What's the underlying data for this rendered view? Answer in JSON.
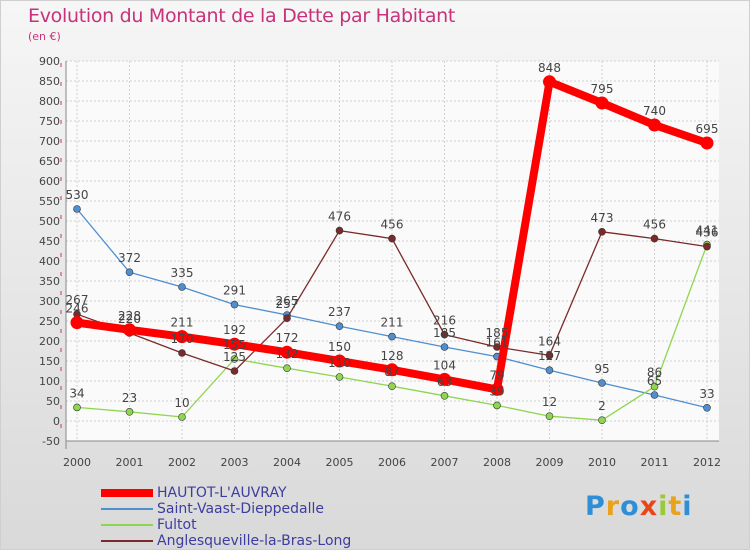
{
  "title": "Evolution du Montant de la Dette par Habitant",
  "subtitle": "(en €)",
  "brand": "Proxiti",
  "chart_data": {
    "type": "line",
    "x": [
      "2000",
      "2001",
      "2002",
      "2003",
      "2004",
      "2005",
      "2006",
      "2007",
      "2008",
      "2009",
      "2010",
      "2011",
      "2012"
    ],
    "ylim": [
      -50,
      900
    ],
    "yticks": [
      -50,
      0,
      50,
      100,
      150,
      200,
      250,
      300,
      350,
      400,
      450,
      500,
      550,
      600,
      650,
      700,
      750,
      800,
      850,
      900
    ],
    "grid": true,
    "legend_position": "bottom-left",
    "series": [
      {
        "name": "HAUTOT-L'AUVRAY",
        "color": "#ff0000",
        "values": [
          246,
          228,
          211,
          192,
          172,
          150,
          128,
          104,
          79,
          848,
          795,
          740,
          695
        ],
        "labels": [
          "246",
          "228",
          "211",
          "192",
          "172",
          "150",
          "128",
          "104",
          "79",
          "848",
          "795",
          "740",
          "695"
        ]
      },
      {
        "name": "Saint-Vaast-Dieppedalle",
        "color": "#4f8fd0",
        "values": [
          530,
          372,
          335,
          291,
          265,
          237,
          211,
          185,
          161,
          127,
          95,
          65,
          33
        ],
        "labels": [
          "530",
          "372",
          "335",
          "291",
          "265",
          "237",
          "211",
          "185",
          "161",
          "127",
          "95",
          "65",
          "33"
        ]
      },
      {
        "name": "Fultot",
        "color": "#8fd650",
        "values": [
          34,
          23,
          10,
          155,
          132,
          110,
          87,
          63,
          39,
          12,
          2,
          86,
          441
        ],
        "labels": [
          "34",
          "23",
          "10",
          "155",
          "132",
          "110",
          "87",
          "63",
          "39",
          "12",
          "2",
          "86",
          "441"
        ]
      },
      {
        "name": "Anglesqueville-la-Bras-Long",
        "color": "#7a2a2a",
        "values": [
          267,
          220,
          170,
          125,
          257,
          476,
          456,
          216,
          185,
          164,
          473,
          456,
          436
        ],
        "labels": [
          "267",
          "220",
          "170",
          "125",
          "257",
          "476",
          "456",
          "216",
          "185",
          "164",
          "473",
          "456",
          "436"
        ]
      }
    ]
  }
}
